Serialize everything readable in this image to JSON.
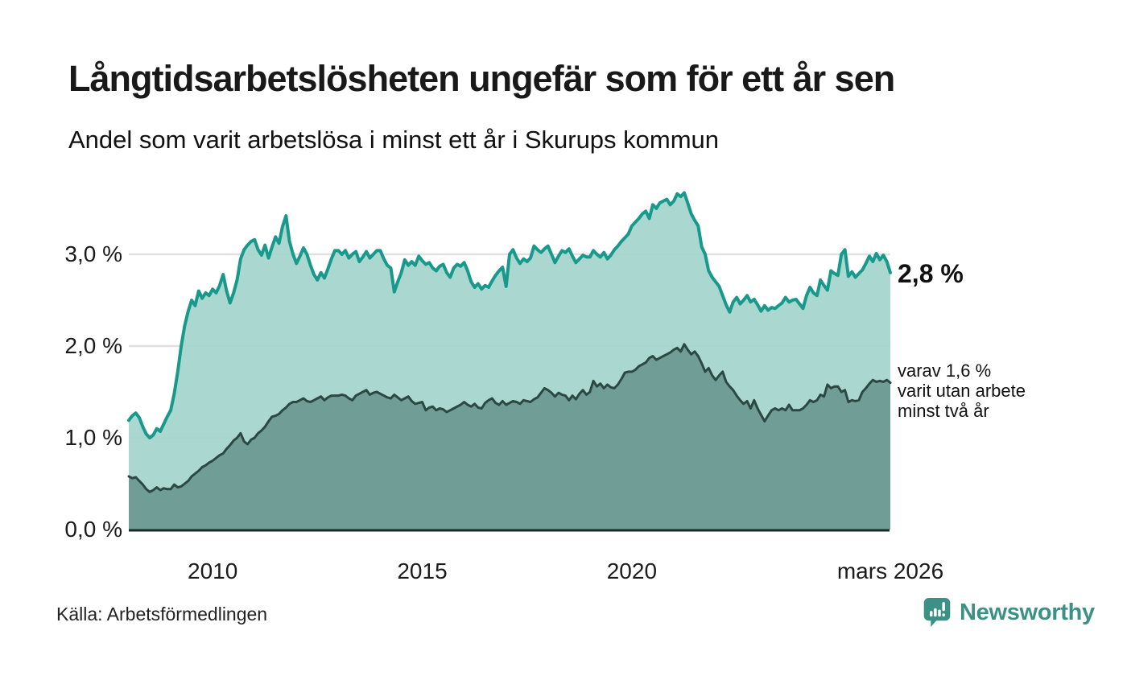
{
  "header": {
    "title": "Långtidsarbetslösheten ungefär som för ett år sen",
    "subtitle": "Andel som varit arbetslösa i minst ett år i Skurups kommun"
  },
  "footer": {
    "source": "Källa: Arbetsförmedlingen",
    "logo_text": "Newsworthy",
    "logo_color": "#3b9186"
  },
  "annotations": {
    "latest_total": "2,8 %",
    "latest_two_years": "varav 1,6 %\nvarit utan arbete\nminst två år"
  },
  "chart_data": {
    "type": "area",
    "title": "Långtidsarbetslösheten ungefär som för ett år sen",
    "subtitle": "Andel som varit arbetslösa i minst ett år i Skurups kommun",
    "source": "Källa: Arbetsförmedlingen",
    "unit": "%",
    "frequency": "monthly",
    "x_start": "2008-01",
    "x_end": "2026-03",
    "ylim": [
      0,
      3.8
    ],
    "grid": true,
    "colors": {
      "gridline": "#e0e0e0",
      "baseline": "#1c2a27"
    },
    "y_ticks": [
      {
        "label": "0,0 %",
        "value": 0
      },
      {
        "label": "1,0 %",
        "value": 1
      },
      {
        "label": "2,0 %",
        "value": 2
      },
      {
        "label": "3,0 %",
        "value": 3
      }
    ],
    "x_ticks": [
      {
        "label": "2010",
        "month_index": 24
      },
      {
        "label": "2015",
        "month_index": 84
      },
      {
        "label": "2020",
        "month_index": 144
      },
      {
        "label": "mars 2026",
        "month_index": 218
      }
    ],
    "series": [
      {
        "name": "Andel som varit arbetslösa i minst ett år",
        "line_color": "#18998b",
        "fill_color": "#a4d5cd",
        "line_width": 4,
        "end_value": 2.8,
        "end_label": "2,8 %",
        "values": [
          1.19,
          1.24,
          1.27,
          1.22,
          1.12,
          1.04,
          1.0,
          1.03,
          1.1,
          1.07,
          1.15,
          1.23,
          1.3,
          1.48,
          1.72,
          2.0,
          2.22,
          2.38,
          2.5,
          2.44,
          2.6,
          2.52,
          2.58,
          2.55,
          2.62,
          2.58,
          2.66,
          2.78,
          2.6,
          2.47,
          2.58,
          2.72,
          2.95,
          3.05,
          3.1,
          3.14,
          3.16,
          3.05,
          2.99,
          3.1,
          2.96,
          3.08,
          3.19,
          3.12,
          3.3,
          3.42,
          3.14,
          3.0,
          2.9,
          2.98,
          3.07,
          3.0,
          2.88,
          2.78,
          2.72,
          2.8,
          2.74,
          2.84,
          2.95,
          3.04,
          3.04,
          3.0,
          3.04,
          2.96,
          3.0,
          3.03,
          2.92,
          2.97,
          3.03,
          2.96,
          3.0,
          3.04,
          3.04,
          2.95,
          2.88,
          2.85,
          2.59,
          2.7,
          2.8,
          2.94,
          2.88,
          2.92,
          2.88,
          2.98,
          2.93,
          2.89,
          2.91,
          2.85,
          2.82,
          2.87,
          2.89,
          2.8,
          2.75,
          2.85,
          2.89,
          2.87,
          2.91,
          2.82,
          2.7,
          2.64,
          2.68,
          2.62,
          2.66,
          2.64,
          2.71,
          2.77,
          2.82,
          2.86,
          2.65,
          3.0,
          3.05,
          2.96,
          2.9,
          2.95,
          2.92,
          2.96,
          3.09,
          3.05,
          3.02,
          3.06,
          3.09,
          3.0,
          2.91,
          2.98,
          3.04,
          3.02,
          3.06,
          2.98,
          2.91,
          2.95,
          2.99,
          2.97,
          2.97,
          3.04,
          3.0,
          2.97,
          3.02,
          2.95,
          2.99,
          3.05,
          3.09,
          3.14,
          3.18,
          3.22,
          3.31,
          3.35,
          3.39,
          3.44,
          3.47,
          3.39,
          3.54,
          3.5,
          3.56,
          3.58,
          3.6,
          3.54,
          3.58,
          3.66,
          3.63,
          3.67,
          3.56,
          3.44,
          3.37,
          3.31,
          3.08,
          3.0,
          2.82,
          2.75,
          2.7,
          2.65,
          2.55,
          2.45,
          2.37,
          2.48,
          2.53,
          2.46,
          2.5,
          2.55,
          2.48,
          2.51,
          2.45,
          2.38,
          2.44,
          2.39,
          2.42,
          2.41,
          2.44,
          2.47,
          2.53,
          2.48,
          2.5,
          2.51,
          2.46,
          2.41,
          2.55,
          2.64,
          2.58,
          2.55,
          2.72,
          2.66,
          2.61,
          2.82,
          2.79,
          2.77,
          3.0,
          3.05,
          2.76,
          2.81,
          2.75,
          2.79,
          2.83,
          2.9,
          2.98,
          2.92,
          3.01,
          2.94,
          2.99,
          2.92,
          2.8
        ]
      },
      {
        "name": "varav utan arbete minst två år",
        "line_color": "#2c4843",
        "fill_color": "#6d9a92",
        "line_width": 3,
        "end_value": 1.6,
        "end_label": "varav 1,6 % varit utan arbete minst två år",
        "values": [
          0.58,
          0.56,
          0.57,
          0.53,
          0.49,
          0.44,
          0.41,
          0.43,
          0.46,
          0.43,
          0.45,
          0.44,
          0.44,
          0.49,
          0.46,
          0.47,
          0.5,
          0.53,
          0.58,
          0.61,
          0.64,
          0.68,
          0.7,
          0.73,
          0.75,
          0.78,
          0.81,
          0.83,
          0.88,
          0.92,
          0.97,
          1.0,
          1.05,
          0.96,
          0.93,
          0.98,
          1.0,
          1.05,
          1.08,
          1.12,
          1.18,
          1.23,
          1.24,
          1.26,
          1.3,
          1.33,
          1.37,
          1.39,
          1.39,
          1.41,
          1.43,
          1.4,
          1.39,
          1.41,
          1.43,
          1.45,
          1.41,
          1.44,
          1.46,
          1.46,
          1.46,
          1.47,
          1.46,
          1.43,
          1.41,
          1.46,
          1.48,
          1.5,
          1.52,
          1.47,
          1.49,
          1.5,
          1.48,
          1.46,
          1.44,
          1.43,
          1.47,
          1.44,
          1.41,
          1.43,
          1.45,
          1.4,
          1.37,
          1.38,
          1.39,
          1.3,
          1.33,
          1.34,
          1.3,
          1.32,
          1.31,
          1.28,
          1.3,
          1.32,
          1.34,
          1.36,
          1.39,
          1.36,
          1.34,
          1.37,
          1.33,
          1.32,
          1.38,
          1.41,
          1.43,
          1.38,
          1.36,
          1.4,
          1.36,
          1.38,
          1.4,
          1.39,
          1.37,
          1.41,
          1.4,
          1.39,
          1.42,
          1.44,
          1.49,
          1.54,
          1.52,
          1.49,
          1.45,
          1.49,
          1.47,
          1.46,
          1.41,
          1.46,
          1.42,
          1.48,
          1.52,
          1.47,
          1.5,
          1.62,
          1.56,
          1.59,
          1.54,
          1.58,
          1.55,
          1.54,
          1.58,
          1.64,
          1.71,
          1.72,
          1.72,
          1.74,
          1.78,
          1.8,
          1.82,
          1.87,
          1.89,
          1.85,
          1.87,
          1.89,
          1.91,
          1.93,
          1.96,
          1.98,
          1.94,
          2.02,
          1.96,
          1.91,
          1.94,
          1.89,
          1.81,
          1.72,
          1.76,
          1.68,
          1.63,
          1.68,
          1.72,
          1.61,
          1.56,
          1.52,
          1.46,
          1.41,
          1.37,
          1.4,
          1.32,
          1.41,
          1.32,
          1.25,
          1.18,
          1.24,
          1.3,
          1.32,
          1.3,
          1.32,
          1.3,
          1.36,
          1.3,
          1.3,
          1.3,
          1.32,
          1.36,
          1.41,
          1.39,
          1.41,
          1.47,
          1.45,
          1.58,
          1.54,
          1.56,
          1.56,
          1.5,
          1.52,
          1.39,
          1.41,
          1.4,
          1.41,
          1.5,
          1.54,
          1.59,
          1.63,
          1.61,
          1.62,
          1.61,
          1.63,
          1.6
        ]
      }
    ]
  }
}
